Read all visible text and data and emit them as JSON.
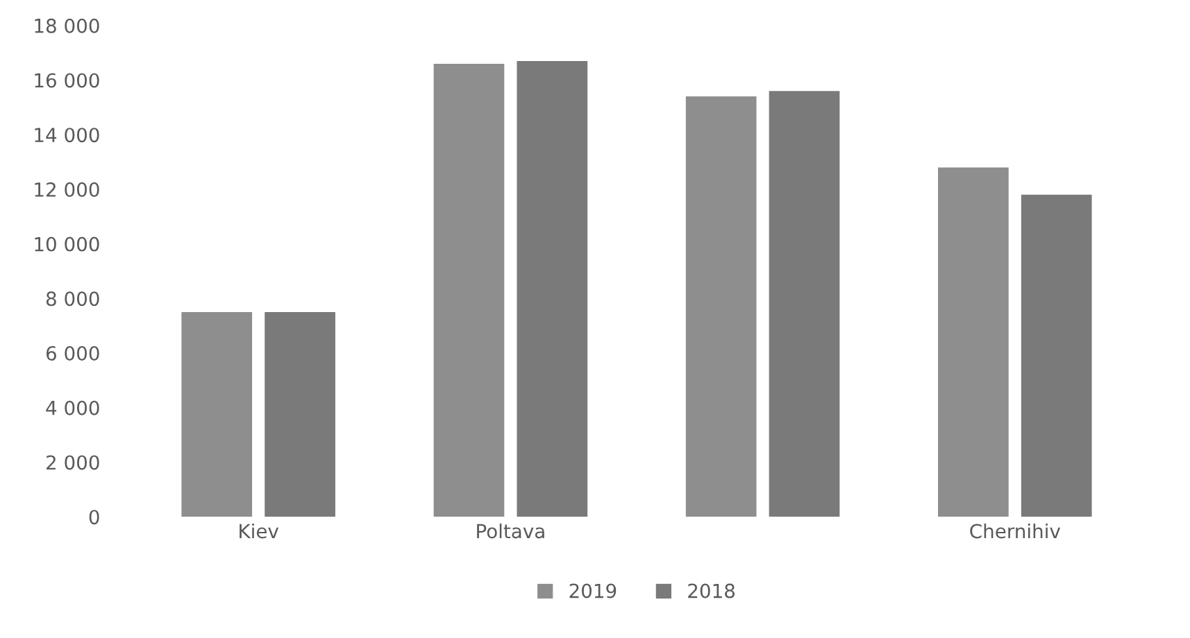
{
  "chart_data": {
    "type": "bar",
    "categories": [
      "Kiev",
      "Poltava",
      null,
      "Chernihiv"
    ],
    "series": [
      {
        "name": "2019",
        "color": "#8e8e8e",
        "values": [
          7500,
          16600,
          15400,
          12800
        ]
      },
      {
        "name": "2018",
        "color": "#7a7a7a",
        "values": [
          7500,
          16700,
          15600,
          11800
        ]
      }
    ],
    "ylim": [
      0,
      18000
    ],
    "yticks": [
      {
        "value": 0,
        "label": "0"
      },
      {
        "value": 2000,
        "label": "2 000"
      },
      {
        "value": 4000,
        "label": "4 000"
      },
      {
        "value": 6000,
        "label": "6 000"
      },
      {
        "value": 8000,
        "label": "8 000"
      },
      {
        "value": 10000,
        "label": "10 000"
      },
      {
        "value": 12000,
        "label": "12 000"
      },
      {
        "value": 14000,
        "label": "14 000"
      },
      {
        "value": 16000,
        "label": "16 000"
      },
      {
        "value": 18000,
        "label": "18 000"
      }
    ],
    "legend": "bottom"
  }
}
